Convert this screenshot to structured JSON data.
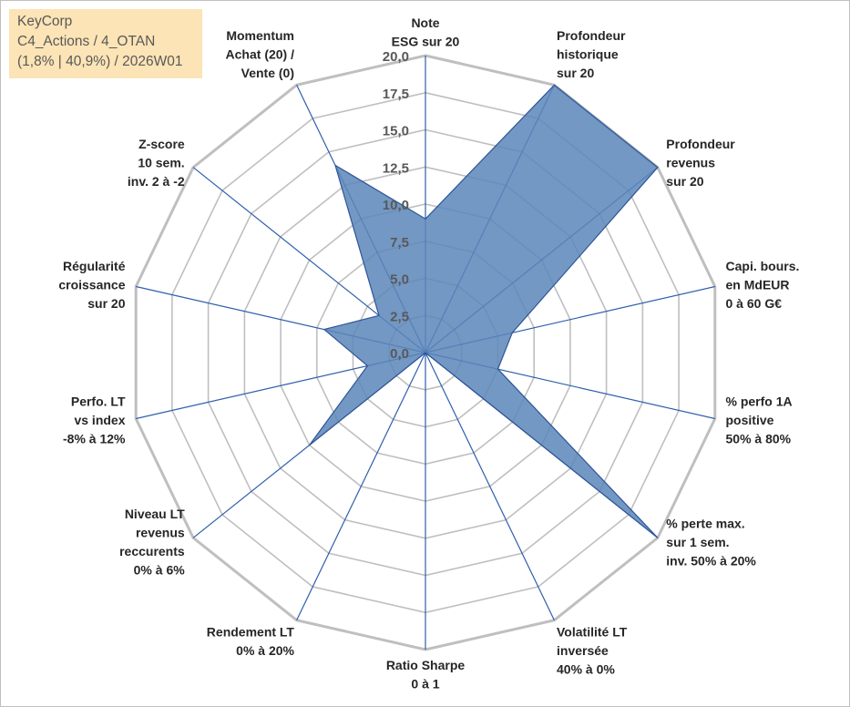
{
  "info": {
    "company": "KeyCorp",
    "category": "C4_Actions / 4_OTAN",
    "stats": "(1,8% | 40,9%) / 2026W01"
  },
  "colors": {
    "fill": "#5b86ba",
    "stroke": "#2f5597",
    "grid": "#bfbfbf",
    "spoke": "#2e5fac",
    "infobox": "#fce4b6"
  },
  "chart_data": {
    "type": "radar",
    "title": "KeyCorp",
    "rlim": [
      0,
      20
    ],
    "ticks": [
      "0,0",
      "2,5",
      "5,0",
      "7,5",
      "10,0",
      "12,5",
      "15,0",
      "17,5",
      "20,0"
    ],
    "axes": [
      {
        "name": "note-esg",
        "label": [
          "Note",
          "ESG sur 20"
        ],
        "value": 9.0
      },
      {
        "name": "profondeur-historique",
        "label": [
          "Profondeur",
          "historique",
          "sur 20"
        ],
        "value": 20.0
      },
      {
        "name": "profondeur-revenus",
        "label": [
          "Profondeur",
          "revenus",
          "sur 20"
        ],
        "value": 20.0
      },
      {
        "name": "capi-bours",
        "label": [
          "Capi. bours.",
          "en MdEUR",
          "0 à 60 G€"
        ],
        "value": 6.0
      },
      {
        "name": "perfo-1a",
        "label": [
          "% perfo 1A",
          "positive",
          "50% à 80%"
        ],
        "value": 5.0
      },
      {
        "name": "perte-max",
        "label": [
          "% perte max.",
          "sur 1 sem.",
          "inv. 50% à 20%"
        ],
        "value": 20.0
      },
      {
        "name": "volatilite-lt",
        "label": [
          "Volatilité LT",
          "inversée",
          "40% à 0%"
        ],
        "value": 0.0
      },
      {
        "name": "ratio-sharpe",
        "label": [
          "Ratio Sharpe",
          "0 à 1"
        ],
        "value": 0.0
      },
      {
        "name": "rendement-lt",
        "label": [
          "Rendement LT",
          "0% à 20%"
        ],
        "value": 0.0
      },
      {
        "name": "niveau-lt-revenus",
        "label": [
          "Niveau LT",
          "revenus",
          "reccurents",
          "0% à 6%"
        ],
        "value": 10.0
      },
      {
        "name": "perfo-lt-index",
        "label": [
          "Perfo. LT",
          "vs index",
          "-8% à 12%"
        ],
        "value": 4.0
      },
      {
        "name": "regularite-croissance",
        "label": [
          "Régularité",
          "croissance",
          "sur 20"
        ],
        "value": 7.0
      },
      {
        "name": "z-score",
        "label": [
          "Z-score",
          "10 sem.",
          "inv. 2 à -2"
        ],
        "value": 4.0
      },
      {
        "name": "momentum",
        "label": [
          "Momentum",
          "Achat (20) /",
          "Vente (0)"
        ],
        "value": 14.0
      }
    ]
  }
}
